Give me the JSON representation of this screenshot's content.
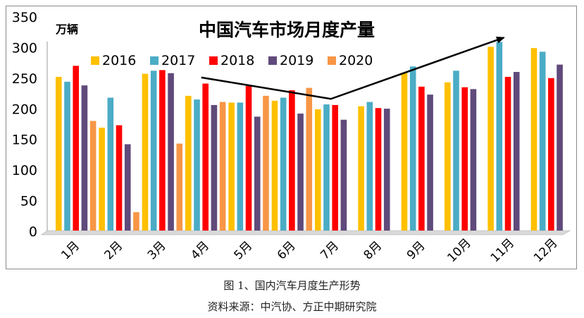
{
  "chart_data": {
    "type": "bar",
    "title": "中国汽车市场月度产量",
    "unit": "万辆",
    "categories": [
      "1月",
      "2月",
      "3月",
      "4月",
      "5月",
      "6月",
      "7月",
      "8月",
      "9月",
      "10月",
      "11月",
      "12月"
    ],
    "ylim": [
      0,
      350
    ],
    "yticks": [
      0,
      50,
      100,
      150,
      200,
      250,
      300,
      350
    ],
    "series": [
      {
        "name": "2016",
        "color": "#FFC000",
        "values": [
          251,
          168,
          256,
          220,
          209,
          212,
          198,
          203,
          258,
          242,
          300,
          298
        ]
      },
      {
        "name": "2017",
        "color": "#4BACC6",
        "values": [
          243,
          217,
          261,
          214,
          209,
          217,
          206,
          210,
          268,
          261,
          308,
          292
        ]
      },
      {
        "name": "2018",
        "color": "#FF0000",
        "values": [
          269,
          172,
          262,
          240,
          236,
          229,
          205,
          200,
          235,
          234,
          251,
          249
        ]
      },
      {
        "name": "2019",
        "color": "#604A7B",
        "values": [
          237,
          141,
          257,
          205,
          186,
          191,
          181,
          199,
          222,
          231,
          259,
          271
        ]
      },
      {
        "name": "2020",
        "color": "#F79646",
        "values": [
          179,
          30,
          142,
          210,
          220,
          233,
          null,
          null,
          null,
          null,
          null,
          null
        ]
      }
    ],
    "trend_arrow": {
      "points": [
        {
          "month": "4月",
          "value": 250
        },
        {
          "month": "7月",
          "value": 215
        },
        {
          "month": "11月",
          "value": 315
        }
      ]
    }
  },
  "caption": "图 1、国内汽车月度生产形势",
  "source": "资料来源：中汽协、方正中期研究院"
}
